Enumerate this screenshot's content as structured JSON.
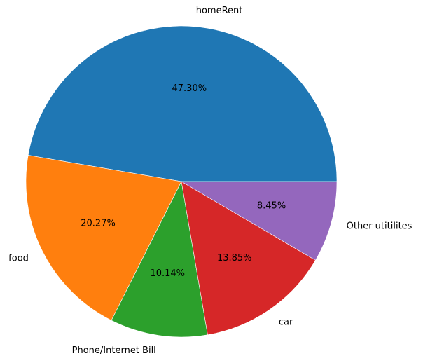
{
  "chart_data": {
    "type": "pie",
    "title": "",
    "categories": [
      "homeRent",
      "food",
      "Phone/Internet Bill",
      "car",
      "Other utitilites"
    ],
    "values": [
      47.3,
      20.27,
      10.14,
      13.85,
      8.45
    ],
    "percent_labels": [
      "47.30%",
      "20.27%",
      "10.14%",
      "13.85%",
      "8.45%"
    ],
    "colors": [
      "#1f77b4",
      "#ff7f0e",
      "#2ca02c",
      "#d62728",
      "#9467bd"
    ],
    "start_angle_deg": 0,
    "direction": "counterclockwise",
    "legend": "none"
  }
}
